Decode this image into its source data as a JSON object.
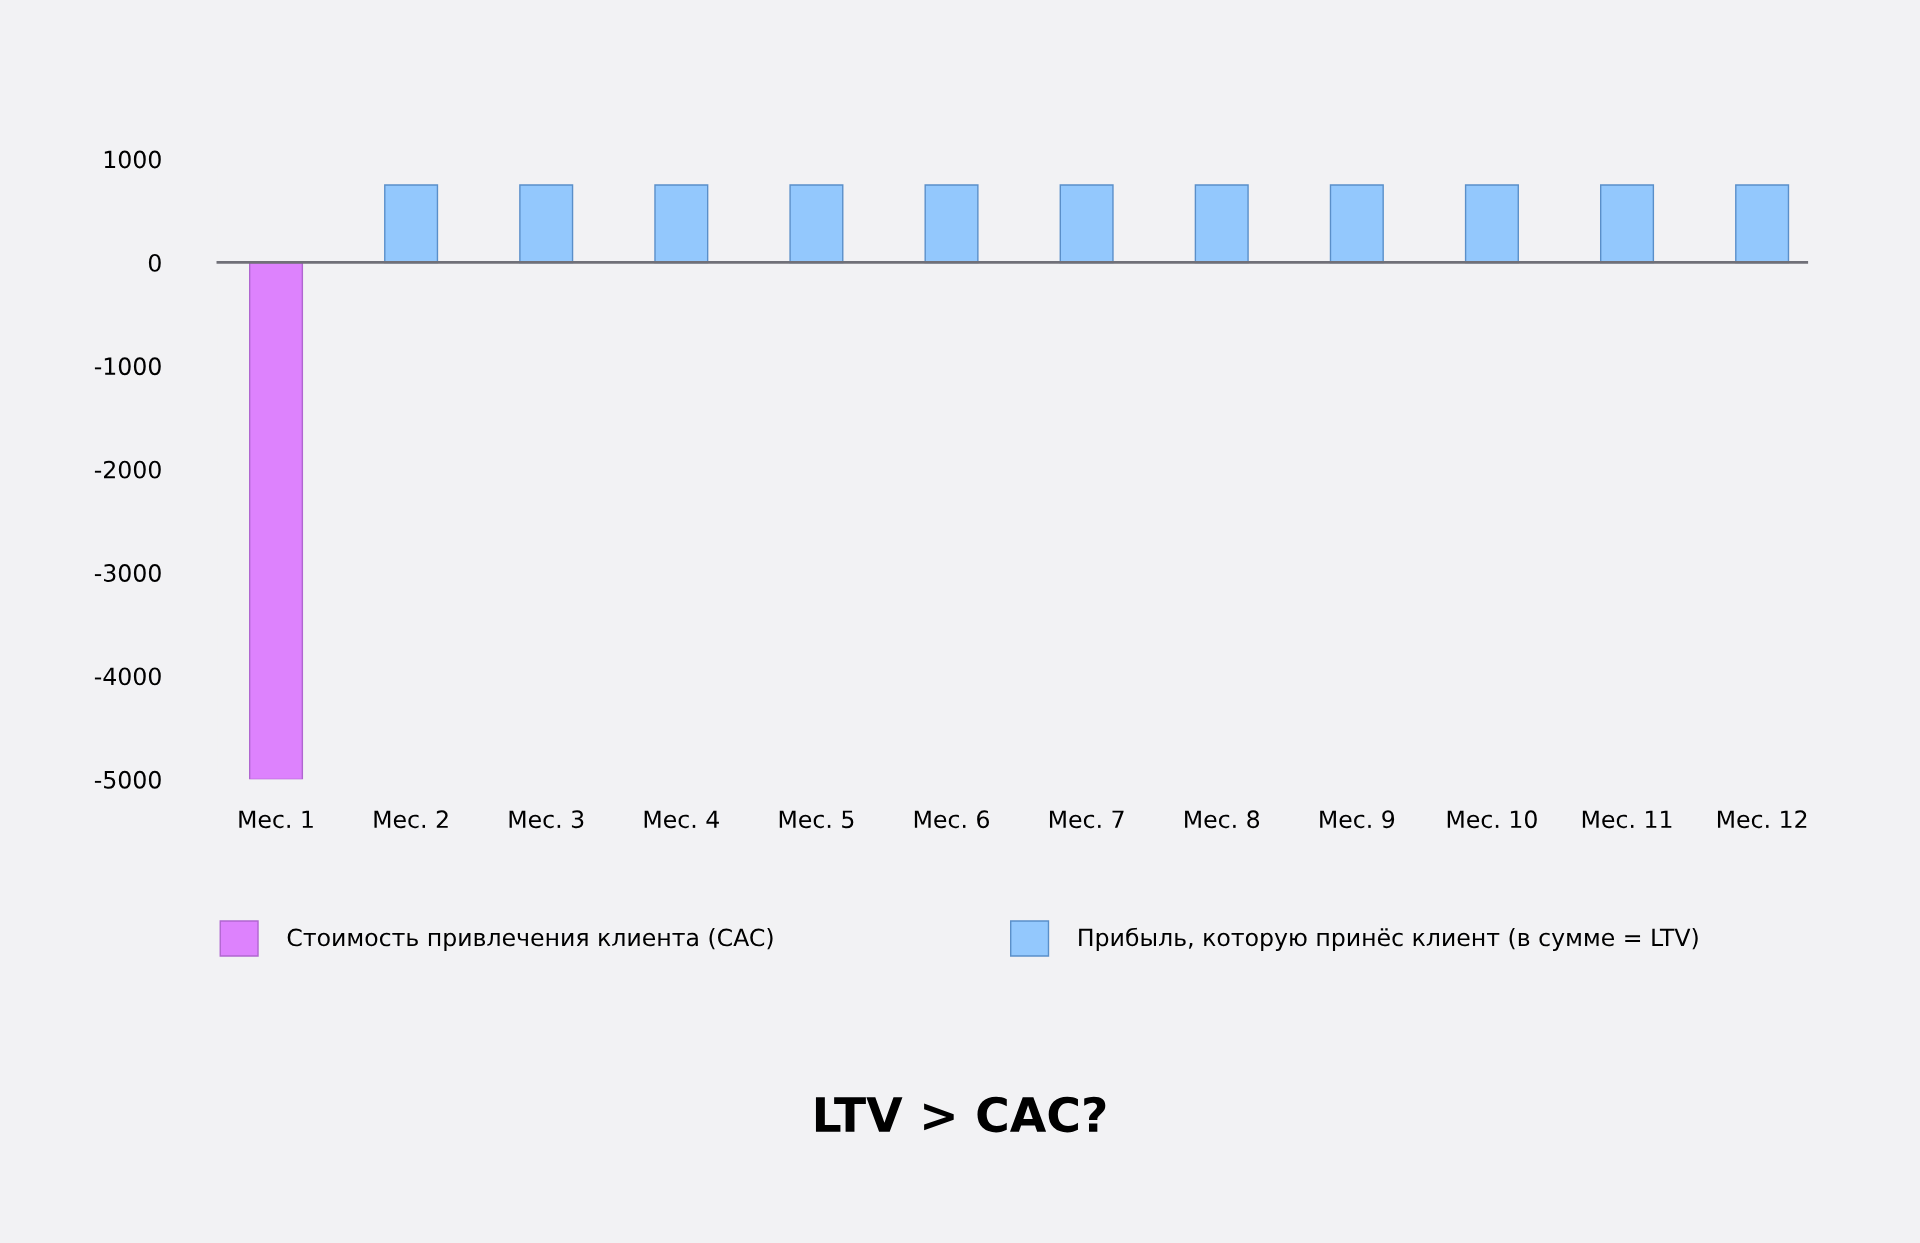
{
  "chart_data": {
    "type": "bar",
    "title": "LTV > CAC?",
    "categories": [
      "Мес. 1",
      "Мес. 2",
      "Мес. 3",
      "Мес. 4",
      "Мес. 5",
      "Мес. 6",
      "Мес. 7",
      "Мес. 8",
      "Мес. 9",
      "Мес. 10",
      "Мес. 11",
      "Мес. 12"
    ],
    "series": [
      {
        "name": "Стоимость привлечения клиента (CAC)",
        "color": "#dd82fd",
        "values": [
          -5000,
          null,
          null,
          null,
          null,
          null,
          null,
          null,
          null,
          null,
          null,
          null
        ]
      },
      {
        "name": "Прибыль, которую принёс клиент (в сумме = LTV)",
        "color": "#93c8fd",
        "values": [
          null,
          750,
          750,
          750,
          750,
          750,
          750,
          750,
          750,
          750,
          750,
          750
        ]
      }
    ],
    "ylim": [
      -5000,
      1000
    ],
    "yticks": [
      -5000,
      -4000,
      -3000,
      -2000,
      -1000,
      0,
      1000
    ],
    "legend": "bottom"
  }
}
